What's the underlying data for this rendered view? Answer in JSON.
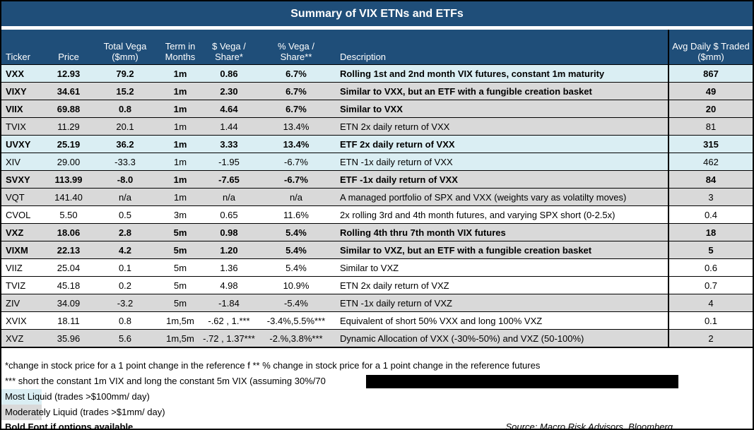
{
  "title": "Summary of VIX ETNs and ETFs",
  "table": {
    "headers": [
      "Ticker",
      "Price",
      "Total Vega ($mm)",
      "Term in Months",
      "$ Vega / Share*",
      "% Vega / Share**",
      "Description",
      "Avg Daily $ Traded ($mm)"
    ],
    "rows": [
      {
        "ticker": "VXX",
        "price": "12.93",
        "total_vega": "79.2",
        "term": "1m",
        "dollar_vega": "0.86",
        "pct_vega": "6.7%",
        "description": "Rolling 1st and 2nd month VIX futures, constant 1m maturity",
        "avg_daily": "867",
        "liquidity": "most",
        "bold": true
      },
      {
        "ticker": "VIXY",
        "price": "34.61",
        "total_vega": "15.2",
        "term": "1m",
        "dollar_vega": "2.30",
        "pct_vega": "6.7%",
        "description": "Similar to VXX, but an ETF with a fungible creation basket",
        "avg_daily": "49",
        "liquidity": "moderate",
        "bold": true
      },
      {
        "ticker": "VIIX",
        "price": "69.88",
        "total_vega": "0.8",
        "term": "1m",
        "dollar_vega": "4.64",
        "pct_vega": "6.7%",
        "description": "Similar to VXX",
        "avg_daily": "20",
        "liquidity": "moderate",
        "bold": true
      },
      {
        "ticker": "TVIX",
        "price": "11.29",
        "total_vega": "20.1",
        "term": "1m",
        "dollar_vega": "1.44",
        "pct_vega": "13.4%",
        "description": "ETN 2x daily return of VXX",
        "avg_daily": "81",
        "liquidity": "moderate",
        "bold": false
      },
      {
        "ticker": "UVXY",
        "price": "25.19",
        "total_vega": "36.2",
        "term": "1m",
        "dollar_vega": "3.33",
        "pct_vega": "13.4%",
        "description": "ETF 2x daily return of VXX",
        "avg_daily": "315",
        "liquidity": "most",
        "bold": true
      },
      {
        "ticker": "XIV",
        "price": "29.00",
        "total_vega": "-33.3",
        "term": "1m",
        "dollar_vega": "-1.95",
        "pct_vega": "-6.7%",
        "description": "ETN -1x daily return of VXX",
        "avg_daily": "462",
        "liquidity": "most",
        "bold": false
      },
      {
        "ticker": "SVXY",
        "price": "113.99",
        "total_vega": "-8.0",
        "term": "1m",
        "dollar_vega": "-7.65",
        "pct_vega": "-6.7%",
        "description": "ETF -1x daily return of VXX",
        "avg_daily": "84",
        "liquidity": "moderate",
        "bold": true
      },
      {
        "ticker": "VQT",
        "price": "141.40",
        "total_vega": "n/a",
        "term": "1m",
        "dollar_vega": "n/a",
        "pct_vega": "n/a",
        "description": "A managed portfolio of SPX and VXX (weights vary as volatilty moves)",
        "avg_daily": "3",
        "liquidity": "moderate",
        "bold": false
      },
      {
        "ticker": "CVOL",
        "price": "5.50",
        "total_vega": "0.5",
        "term": "3m",
        "dollar_vega": "0.65",
        "pct_vega": "11.6%",
        "description": "2x rolling 3rd and 4th month futures, and varying SPX short (0-2.5x)",
        "avg_daily": "0.4",
        "liquidity": "low",
        "bold": false
      },
      {
        "ticker": "VXZ",
        "price": "18.06",
        "total_vega": "2.8",
        "term": "5m",
        "dollar_vega": "0.98",
        "pct_vega": "5.4%",
        "description": "Rolling 4th thru 7th month VIX futures",
        "avg_daily": "18",
        "liquidity": "moderate",
        "bold": true
      },
      {
        "ticker": "VIXM",
        "price": "22.13",
        "total_vega": "4.2",
        "term": "5m",
        "dollar_vega": "1.20",
        "pct_vega": "5.4%",
        "description": "Similar to VXZ, but an ETF with a fungible creation basket",
        "avg_daily": "5",
        "liquidity": "moderate",
        "bold": true
      },
      {
        "ticker": "VIIZ",
        "price": "25.04",
        "total_vega": "0.1",
        "term": "5m",
        "dollar_vega": "1.36",
        "pct_vega": "5.4%",
        "description": "Similar to VXZ",
        "avg_daily": "0.6",
        "liquidity": "low",
        "bold": false
      },
      {
        "ticker": "TVIZ",
        "price": "45.18",
        "total_vega": "0.2",
        "term": "5m",
        "dollar_vega": "4.98",
        "pct_vega": "10.9%",
        "description": "ETN 2x daily return of VXZ",
        "avg_daily": "0.7",
        "liquidity": "low",
        "bold": false
      },
      {
        "ticker": "ZIV",
        "price": "34.09",
        "total_vega": "-3.2",
        "term": "5m",
        "dollar_vega": "-1.84",
        "pct_vega": "-5.4%",
        "description": "ETN -1x daily return of VXZ",
        "avg_daily": "4",
        "liquidity": "moderate",
        "bold": false
      },
      {
        "ticker": "XVIX",
        "price": "18.11",
        "total_vega": "0.8",
        "term": "1m,5m",
        "dollar_vega": "-.62 , 1.***",
        "pct_vega": "-3.4%,5.5%***",
        "description": "Equivalent of short 50% VXX and long 100% VXZ",
        "avg_daily": "0.1",
        "liquidity": "low",
        "bold": false
      },
      {
        "ticker": "XVZ",
        "price": "35.96",
        "total_vega": "5.6",
        "term": "1m,5m",
        "dollar_vega": "-.72 , 1.37***",
        "pct_vega": "-2.%,3.8%***",
        "description": "Dynamic Allocation of VXX (-30%-50%) and VXZ (50-100%)",
        "avg_daily": "2",
        "liquidity": "moderate",
        "bold": false
      }
    ]
  },
  "footnotes": {
    "line1": "*change in stock price for a 1 point change in the reference f ** % change in stock price for a 1 point change in the reference futures",
    "line2": "*** short the constant 1m VIX and long the constant 5m VIX (assuming 30%/70",
    "most_liquid": "Most Liquid (trades >$100mm/ day)",
    "moderately_liquid": "Moderately Liquid (trades >$1mm/ day)",
    "bold_note": "Bold Font if options available",
    "source": "Source: Macro Risk Advisors, Bloomberg"
  },
  "colors": {
    "header_navy": "#1F4E79",
    "most_liquid_blue": "#DAEEF3",
    "moderately_liquid_gray": "#D9D9D9",
    "border_black": "#000000"
  }
}
